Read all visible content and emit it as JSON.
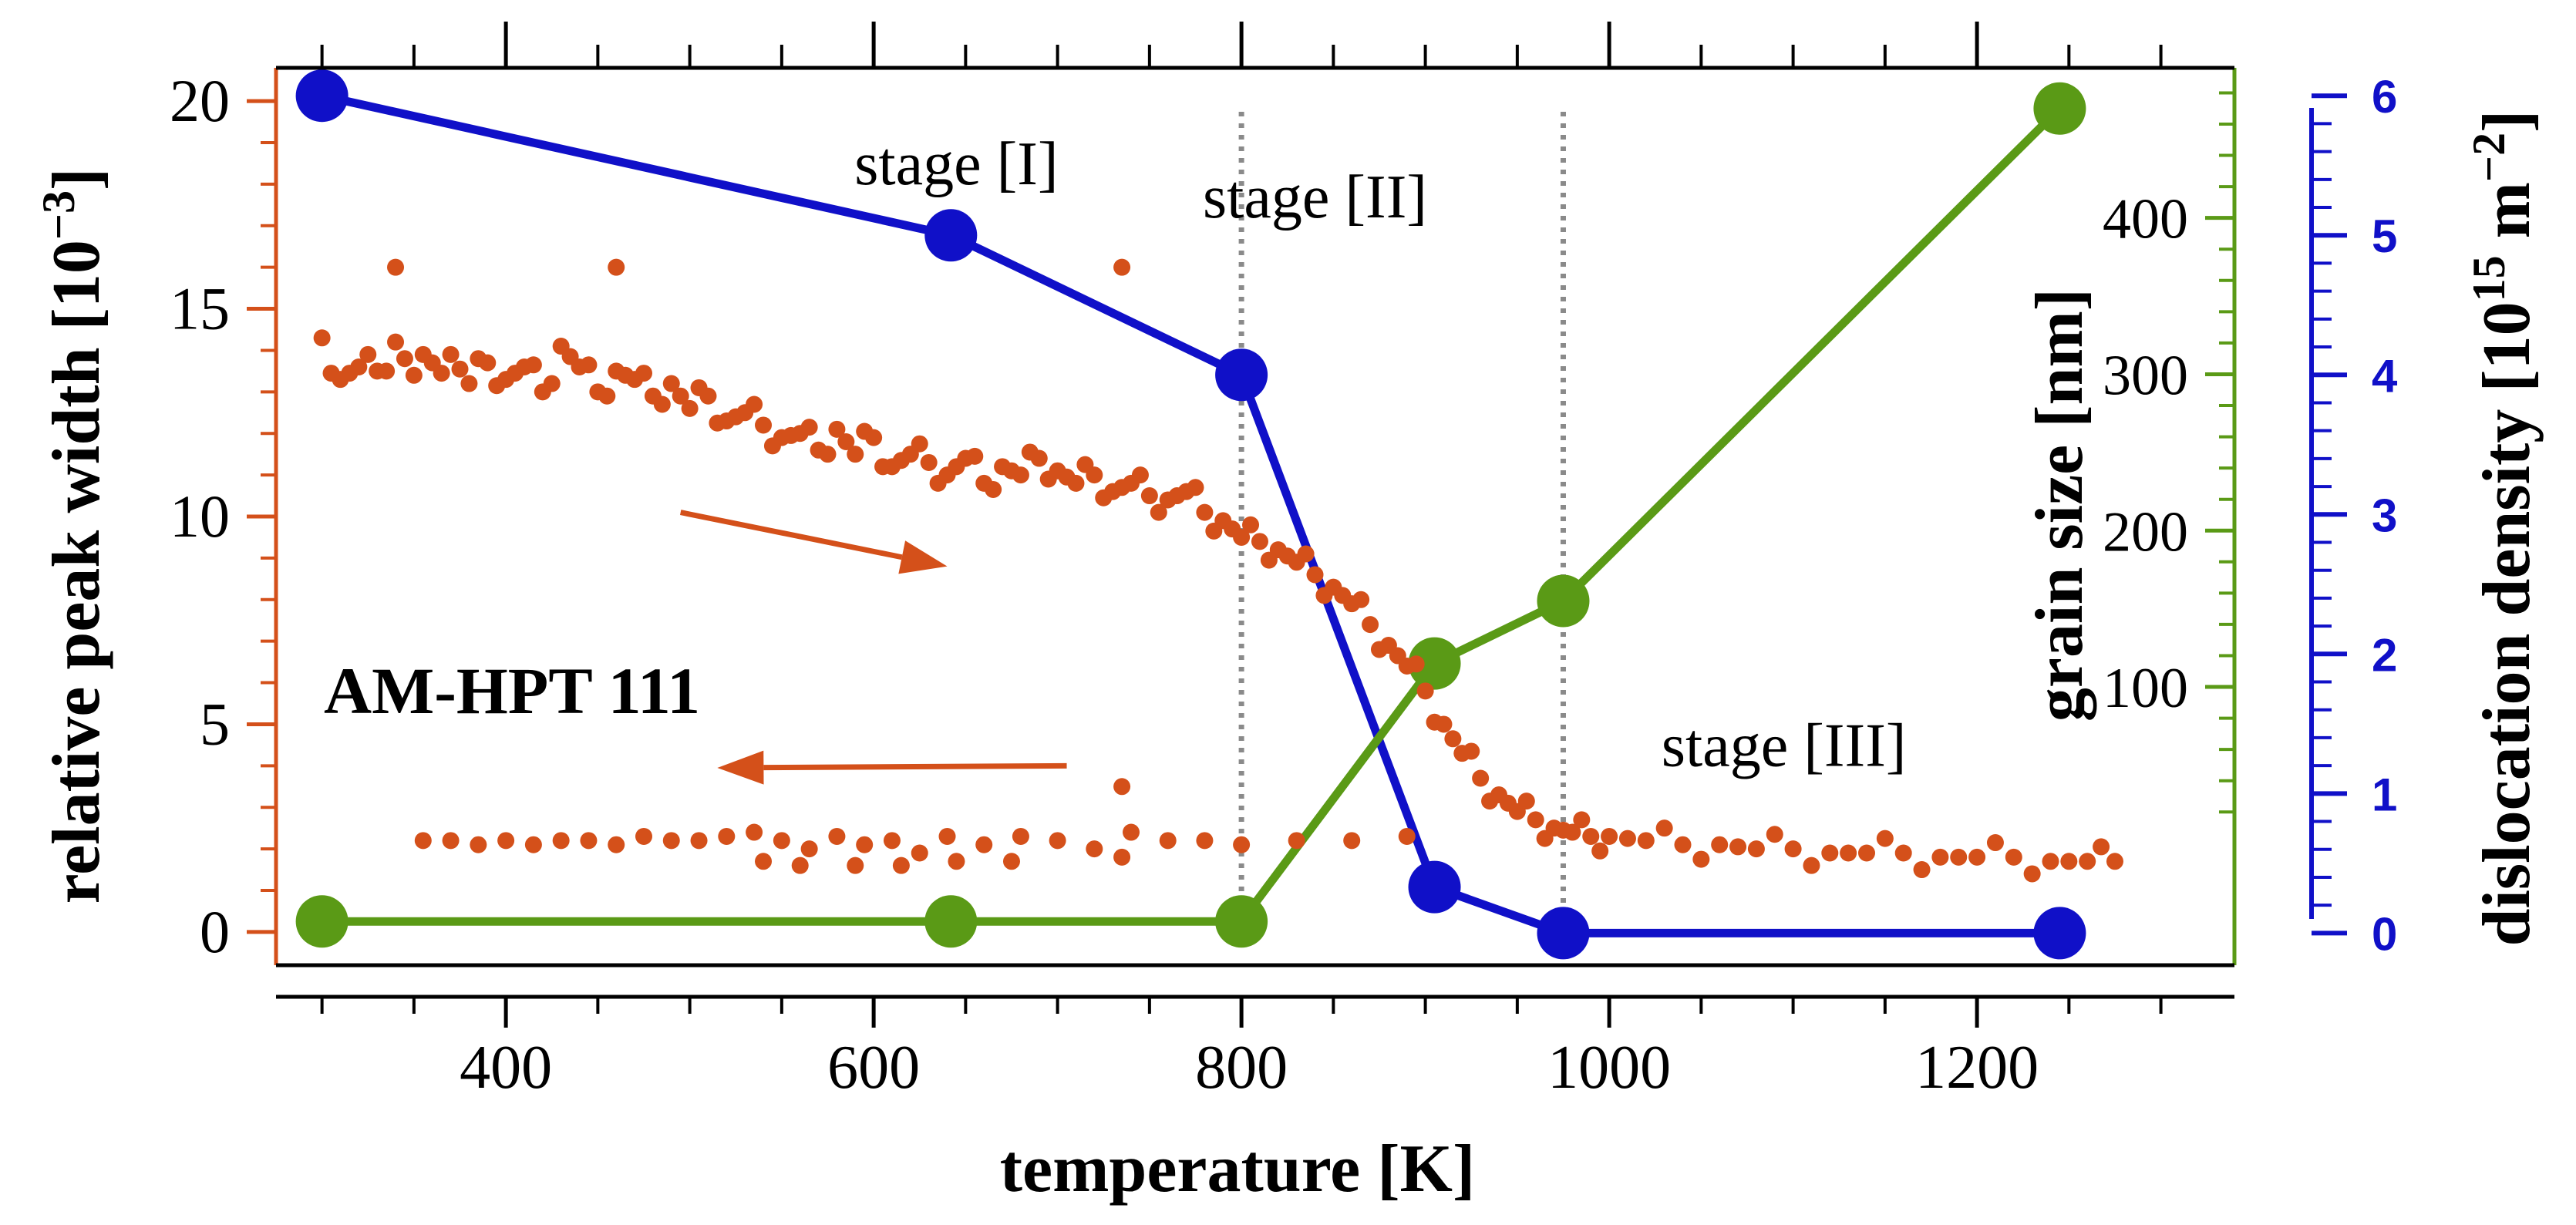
{
  "colors": {
    "peak": "#D4501A",
    "grain": "#5A9A16",
    "dislocation": "#1010C8",
    "stage_line": "#8A8A8A",
    "axis": "#000000"
  },
  "chart_data": {
    "type": "scatter",
    "title": "",
    "annotation_sample": "AM-HPT 111",
    "stage_labels": [
      "stage [I]",
      "stage [II]",
      "stage [III]"
    ],
    "stage_boundaries_K": [
      800,
      975
    ],
    "stage_label_positions": [
      {
        "x": 645,
        "y": 18
      },
      {
        "x": 840,
        "y": 17.2
      },
      {
        "x": 1095,
        "y": 4
      }
    ],
    "xaxis": {
      "label": "temperature [K]",
      "range": [
        275,
        1340
      ],
      "ticks": [
        400,
        600,
        800,
        1000,
        1200
      ],
      "tick_labels": [
        "400",
        "600",
        "800",
        "1000",
        "1200"
      ]
    },
    "y_left": {
      "label_main": "relative peak width [10",
      "label_exp": "−3",
      "label_end": "]",
      "range": [
        -0.8,
        20.8
      ],
      "ticks": [
        0,
        5,
        10,
        15,
        20
      ],
      "tick_labels": [
        "0",
        "5",
        "10",
        "15",
        "20"
      ]
    },
    "y_grain": {
      "label": "grain size [nm]",
      "range": [
        -78,
        496
      ],
      "ticks": [
        100,
        200,
        300,
        400
      ],
      "tick_labels": [
        "100",
        "200",
        "300",
        "400"
      ]
    },
    "y_dislocation": {
      "label_main": "dislocation density  [10",
      "label_exp1": "15",
      "label_mid": " m",
      "label_exp2": "−2",
      "label_end": "]",
      "range": [
        -0.23,
        6.2
      ],
      "ticks": [
        0,
        1,
        2,
        3,
        4,
        5,
        6
      ],
      "tick_labels": [
        "0",
        "1",
        "2",
        "3",
        "4",
        "5",
        "6"
      ]
    },
    "series": [
      {
        "name": "dislocation density",
        "axis": "dislocation",
        "x": [
          300,
          642,
          800,
          905,
          975,
          1245
        ],
        "values": [
          6.0,
          5.0,
          4.0,
          0.33,
          0.0,
          0.0
        ]
      },
      {
        "name": "grain size",
        "axis": "grain",
        "x": [
          300,
          642,
          800,
          905,
          975,
          1245
        ],
        "values": [
          -50,
          -50,
          -50,
          115,
          155,
          470
        ]
      }
    ],
    "scatter_heating": {
      "name": "relative peak width (heating)",
      "x": [
        300,
        310,
        320,
        330,
        340,
        350,
        360,
        370,
        380,
        390,
        400,
        410,
        420,
        430,
        440,
        450,
        460,
        470,
        480,
        490,
        500,
        510,
        520,
        530,
        540,
        550,
        560,
        570,
        580,
        590,
        600,
        610,
        620,
        630,
        640,
        650,
        660,
        670,
        680,
        690,
        700,
        710,
        720,
        730,
        740,
        750,
        760,
        770,
        780,
        790,
        800,
        810,
        820,
        830,
        840,
        850,
        860,
        870,
        880,
        890,
        900,
        910,
        920,
        930,
        940,
        950,
        960,
        970,
        980,
        990,
        1000,
        1020,
        1040,
        1060,
        1080,
        1100,
        1120,
        1140,
        1160,
        1180,
        1200,
        1220,
        1240,
        1260,
        1275
      ],
      "values": [
        14.3,
        13.3,
        13.6,
        13.5,
        14.2,
        13.4,
        13.7,
        13.9,
        13.2,
        13.7,
        13.3,
        13.6,
        13.0,
        14.1,
        13.6,
        13.0,
        13.5,
        13.3,
        12.9,
        13.2,
        12.6,
        12.9,
        12.3,
        12.5,
        12.2,
        11.9,
        12.0,
        11.6,
        12.1,
        11.5,
        11.9,
        11.2,
        11.5,
        11.3,
        11.0,
        11.4,
        10.8,
        11.2,
        11.0,
        11.4,
        11.1,
        10.8,
        11.0,
        10.6,
        10.8,
        10.5,
        10.4,
        10.6,
        10.1,
        9.9,
        9.5,
        9.4,
        9.2,
        8.9,
        8.6,
        8.3,
        7.9,
        7.4,
        6.9,
        6.4,
        5.8,
        5.0,
        4.3,
        3.7,
        3.3,
        2.9,
        2.7,
        2.5,
        2.4,
        2.3,
        2.3,
        2.2,
        2.1,
        2.1,
        2.0,
        2.0,
        1.9,
        1.9,
        1.9,
        1.8,
        1.8,
        1.8,
        1.7,
        1.7,
        1.7
      ],
      "outliers_x": [
        340,
        460,
        735,
        735
      ],
      "outliers_y": [
        16.0,
        16.0,
        16.0,
        3.5
      ]
    },
    "scatter_cooling": {
      "name": "relative peak width (cooling)",
      "x": [
        355,
        370,
        385,
        400,
        415,
        430,
        445,
        460,
        475,
        490,
        505,
        520,
        535,
        550,
        565,
        580,
        595,
        610,
        625,
        640,
        660,
        680,
        700,
        720,
        740,
        760,
        780,
        800,
        830,
        860,
        890
      ],
      "values": [
        2.2,
        2.2,
        2.1,
        2.2,
        2.1,
        2.2,
        2.2,
        2.1,
        2.3,
        2.2,
        2.2,
        2.3,
        2.4,
        2.2,
        2.0,
        2.3,
        2.1,
        2.2,
        1.9,
        2.3,
        2.1,
        2.3,
        2.2,
        2.0,
        2.4,
        2.2,
        2.2,
        2.1,
        2.2,
        2.2,
        2.3
      ],
      "extra_x": [
        540,
        560,
        590,
        615,
        645,
        675,
        735
      ],
      "extra_y": [
        1.7,
        1.6,
        1.6,
        1.6,
        1.7,
        1.7,
        1.8
      ]
    },
    "arrows": [
      {
        "direction": "right",
        "x_from": 495,
        "x_to": 640,
        "y_from": 10.1,
        "y_to": 8.8
      },
      {
        "direction": "left",
        "x_from": 705,
        "x_to": 515,
        "y_from": 4.0,
        "y_to": 3.95
      }
    ]
  }
}
